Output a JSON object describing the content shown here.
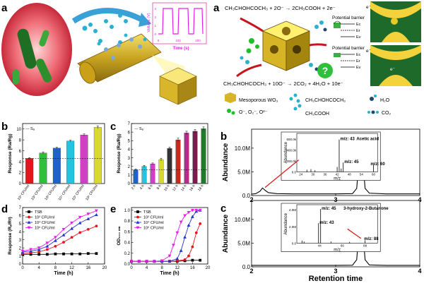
{
  "panel_letters": {
    "a_left": "a",
    "a_right": "a",
    "b": "b",
    "c": "c",
    "d": "d",
    "e": "e",
    "b_right": "b",
    "c_right": "c"
  },
  "schematic": {
    "inset_ylabel": "Voltage (V)",
    "inset_xlabel": "Time (s)",
    "inset_x_ticks": [
      "0",
      "100",
      "200"
    ],
    "inset_y_ticks": [
      "0",
      "1",
      "2",
      "3"
    ],
    "reaction_top": "CH₃CHOHCOCH₃ + 2O⁻ → 2CH₃COOH + 2e⁻",
    "reaction_bottom": "CH₃CHOHCOCH₃ + 10O⁻ → 2CO₂ + 4H₂O + 10e⁻",
    "potential_barrier_1": "Potential barrier",
    "potential_barrier_2": "Potential barrier",
    "ec": "Eᴄ",
    "ef": "Eғ",
    "ev": "Eᴠ",
    "legend_mesoporous": "Mesoporous WO₃",
    "legend_acetoin": "CH₃CHOHCOCH₃",
    "legend_water": "H₂O",
    "legend_oxygen": "O⁻, O₂⁻, O²⁻",
    "legend_acetic": "CH₃COOH",
    "legend_co2": "CO₂",
    "electron": "e⁻",
    "question": "?"
  },
  "chart_data": [
    {
      "id": "b",
      "type": "bar",
      "ylabel": "Response (Ra/Rg)",
      "legend": "--- Sₐ",
      "categories": [
        "10¹ CFU/ml",
        "10² CFU/ml",
        "10³ CFU/ml",
        "10⁴ CFU/ml",
        "10⁵ CFU/ml",
        "10⁶ CFU/ml"
      ],
      "values": [
        4.6,
        5.6,
        6.5,
        7.8,
        8.9,
        10.3
      ],
      "errors": [
        0.15,
        0.2,
        0.15,
        0.15,
        0.2,
        0.25
      ],
      "colors": [
        "#e8141c",
        "#2fbf3a",
        "#1e63c9",
        "#22c4e0",
        "#cf3fc9",
        "#d8d830"
      ],
      "yticks": [
        "0",
        "2",
        "4",
        "6",
        "8",
        "10"
      ],
      "ylim": [
        0,
        11
      ]
    },
    {
      "id": "c",
      "type": "bar",
      "ylabel": "Response (Ra/Rg)",
      "legend": "--- Sₐ",
      "categories": [
        "2 h",
        "4 h",
        "6 h",
        "8 h",
        "10 h",
        "12 h",
        "14 h",
        "16 h",
        "18 h"
      ],
      "values": [
        1.6,
        2.0,
        2.3,
        2.8,
        4.1,
        5.1,
        5.9,
        6.1,
        6.4
      ],
      "errors": [
        0.1,
        0.12,
        0.1,
        0.15,
        0.15,
        0.2,
        0.2,
        0.2,
        0.2
      ],
      "colors": [
        "#1e63c9",
        "#22c4e0",
        "#cf3fc9",
        "#d8d830",
        "#333333",
        "#c82a1c",
        "#b52c8a",
        "#7a1e50",
        "#1f7a2a"
      ],
      "yticks": [
        "0",
        "1",
        "2",
        "3",
        "4",
        "5",
        "6",
        "7"
      ],
      "ylim": [
        0,
        7
      ]
    },
    {
      "id": "d",
      "type": "line",
      "xlabel": "Time (h)",
      "ylabel": "Response (Rₐ/Rᵍ)",
      "xticks": [
        "0",
        "4",
        "8",
        "12",
        "16",
        "20"
      ],
      "yticks": [
        "0",
        "1",
        "2",
        "3",
        "4",
        "5",
        "6",
        "7"
      ],
      "xlim": [
        0,
        20
      ],
      "ylim": [
        0,
        7
      ],
      "series": [
        {
          "name": "TSB",
          "color": "#000000",
          "marker": "square",
          "x": [
            0,
            2,
            4,
            6,
            8,
            10,
            12,
            14,
            16,
            18
          ],
          "y": [
            1.2,
            1.2,
            1.2,
            1.2,
            1.25,
            1.25,
            1.25,
            1.25,
            1.3,
            1.3
          ]
        },
        {
          "name": "10² CFU/ml",
          "color": "#e8141c",
          "marker": "circle",
          "x": [
            0,
            2,
            4,
            6,
            8,
            10,
            12,
            14,
            16,
            18
          ],
          "y": [
            1.3,
            1.4,
            1.5,
            1.8,
            2.2,
            2.7,
            3.3,
            3.9,
            4.3,
            4.7
          ]
        },
        {
          "name": "10⁴ CFU/ml",
          "color": "#2233cc",
          "marker": "triangle",
          "x": [
            0,
            2,
            4,
            6,
            8,
            10,
            12,
            14,
            16,
            18
          ],
          "y": [
            1.5,
            1.6,
            1.8,
            2.2,
            2.9,
            3.6,
            4.4,
            5.1,
            5.6,
            6.1
          ]
        },
        {
          "name": "10⁶ CFU/ml",
          "color": "#e61fe6",
          "marker": "triangle-down",
          "x": [
            0,
            2,
            4,
            6,
            8,
            10,
            12,
            14,
            16,
            18
          ],
          "y": [
            1.6,
            1.8,
            2.0,
            2.6,
            3.3,
            4.3,
            5.1,
            5.8,
            6.2,
            6.6
          ]
        }
      ]
    },
    {
      "id": "e",
      "type": "line",
      "xlabel": "Time (h)",
      "ylabel": "OD₆₀₀ ₙₘ",
      "xticks": [
        "0",
        "4",
        "8",
        "12",
        "16",
        "20"
      ],
      "yticks": [
        "0.0",
        "0.2",
        "0.4",
        "0.6",
        "0.8",
        "1.0"
      ],
      "xlim": [
        0,
        20
      ],
      "ylim": [
        0,
        1.05
      ],
      "series": [
        {
          "name": "TSB",
          "color": "#000000",
          "marker": "square",
          "x": [
            0,
            2,
            4,
            6,
            8,
            10,
            12,
            14,
            16,
            18
          ],
          "y": [
            0.05,
            0.05,
            0.05,
            0.05,
            0.05,
            0.05,
            0.05,
            0.06,
            0.07,
            0.07
          ]
        },
        {
          "name": "10² CFU/ml",
          "color": "#e8141c",
          "marker": "circle",
          "x": [
            0,
            2,
            4,
            6,
            8,
            10,
            12,
            14,
            15,
            16,
            17,
            18
          ],
          "y": [
            0.05,
            0.05,
            0.05,
            0.05,
            0.05,
            0.05,
            0.06,
            0.08,
            0.15,
            0.32,
            0.58,
            0.75
          ]
        },
        {
          "name": "10⁴ CFU/ml",
          "color": "#2233cc",
          "marker": "triangle",
          "x": [
            0,
            2,
            4,
            6,
            8,
            10,
            12,
            13,
            14,
            15,
            16,
            17,
            18
          ],
          "y": [
            0.05,
            0.05,
            0.05,
            0.05,
            0.05,
            0.05,
            0.1,
            0.25,
            0.5,
            0.72,
            0.88,
            0.98,
            1.0
          ]
        },
        {
          "name": "10⁶ CFU/ml",
          "color": "#e61fe6",
          "marker": "triangle-down",
          "x": [
            0,
            2,
            4,
            6,
            8,
            10,
            11,
            12,
            13,
            14,
            15,
            16,
            17,
            18
          ],
          "y": [
            0.05,
            0.05,
            0.05,
            0.05,
            0.06,
            0.15,
            0.35,
            0.58,
            0.78,
            0.9,
            0.96,
            1.0,
            1.0,
            1.0
          ]
        }
      ]
    },
    {
      "id": "gc_b",
      "type": "line",
      "ylabel": "Abundance",
      "ylim": [
        0,
        14
      ],
      "yticks": [
        "0.0",
        "5.0M",
        "10.0M"
      ],
      "xticks": [
        "2",
        "3",
        "4"
      ],
      "xlim": [
        2,
        4
      ],
      "series": [
        {
          "x": [
            2.0,
            2.05,
            2.1,
            2.13,
            2.16,
            2.2,
            2.3,
            2.5,
            2.8,
            3.0,
            3.2,
            3.25,
            3.28,
            3.3,
            3.32,
            3.35,
            3.4,
            3.6,
            3.8,
            4.0
          ],
          "y": [
            0.3,
            0.4,
            0.9,
            1.6,
            1.1,
            0.6,
            0.4,
            0.35,
            0.35,
            0.35,
            0.4,
            1.5,
            8,
            12.8,
            8,
            1.5,
            0.5,
            0.35,
            0.35,
            0.35
          ]
        }
      ],
      "inset": {
        "xlabel": "m/z",
        "ylabel": "Abundance",
        "yticks": [
          "0.0",
          "200.0k",
          "400.0k",
          "600.0k"
        ],
        "xticks": [
          "24",
          "30",
          "36",
          "42",
          "48",
          "54",
          "60"
        ],
        "xlim": [
          22,
          62
        ],
        "ylim": [
          0,
          700
        ],
        "peaks_x": [
          27,
          29,
          31,
          42,
          43,
          44,
          45,
          60
        ],
        "peaks_y": [
          40,
          50,
          30,
          90,
          590,
          60,
          170,
          130
        ],
        "labels": [
          {
            "text": "m/z: 43",
            "x": 43,
            "y": 590
          },
          {
            "text": "Acetic acid",
            "x": 51,
            "y": 590
          },
          {
            "text": "m/z: 45",
            "x": 45,
            "y": 175
          },
          {
            "text": "m/z: 60",
            "x": 58,
            "y": 135
          }
        ]
      }
    },
    {
      "id": "gc_c",
      "type": "line",
      "xlabel": "Retention time",
      "ylabel": "Abundance",
      "ylim": [
        0,
        14
      ],
      "yticks": [
        "0.0",
        "5.0M",
        "10.0M"
      ],
      "xticks": [
        "2",
        "3",
        "4"
      ],
      "xlim": [
        2,
        4
      ],
      "series": [
        {
          "x": [
            2.0,
            2.5,
            3.0,
            3.2,
            3.25,
            3.28,
            3.3,
            3.32,
            3.35,
            3.4,
            3.6,
            3.8,
            4.0
          ],
          "y": [
            0.3,
            0.3,
            0.3,
            0.35,
            1.5,
            8,
            12.8,
            8,
            1.5,
            0.4,
            0.3,
            0.3,
            0.3
          ]
        }
      ],
      "inset": {
        "xlabel": "m/z",
        "ylabel": "Abundance",
        "yticks": [
          "0.0",
          "2.0M",
          "4.0M"
        ],
        "xticks": [
          "44",
          "66",
          "88"
        ],
        "xlim": [
          22,
          100
        ],
        "ylim": [
          0,
          4.6
        ],
        "peaks_x": [
          27,
          29,
          43,
          45,
          55,
          73,
          88
        ],
        "peaks_y": [
          0.3,
          0.2,
          2.4,
          4.1,
          0.2,
          0.15,
          0.35
        ],
        "labels": [
          {
            "text": "m/z: 45",
            "x": 45,
            "y": 4.1
          },
          {
            "text": "3-hydroxy-2-Butanone",
            "x": 66,
            "y": 4.1
          },
          {
            "text": "m/z: 43",
            "x": 43,
            "y": 2.4
          },
          {
            "text": "m/z: 88",
            "x": 86,
            "y": 0.45
          }
        ]
      }
    }
  ]
}
